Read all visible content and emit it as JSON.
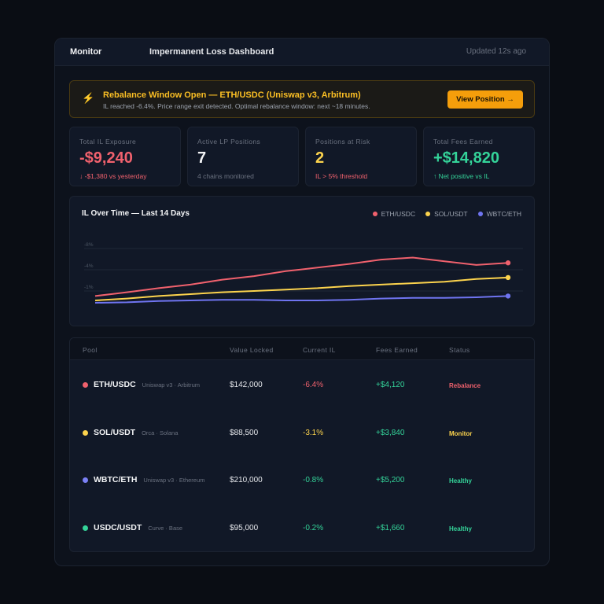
{
  "header": {
    "brand": "Monitor",
    "title": "Impermanent Loss Dashboard",
    "updated": "Updated 12s ago"
  },
  "alert": {
    "icon": "lightning-icon",
    "title": "Rebalance Window Open — ETH/USDC (Uniswap v3, Arbitrum)",
    "subtitle": "IL reached -6.4%. Price range exit detected. Optimal rebalance window: next ~18 minutes.",
    "button": "View Position →"
  },
  "kpis": [
    {
      "label": "Total IL Exposure",
      "value": "-$9,240",
      "note": "↓ -$1,380 vs yesterday",
      "color": "#f0616d",
      "note_color": "#f0616d"
    },
    {
      "label": "Active LP Positions",
      "value": "7",
      "note": "4 chains monitored",
      "color": "#f3f4f6",
      "note_color": "#6b7280"
    },
    {
      "label": "Positions at Risk",
      "value": "2",
      "note": "IL > 5% threshold",
      "color": "#fcd34d",
      "note_color": "#f0616d"
    },
    {
      "label": "Total Fees Earned",
      "value": "+$14,820",
      "note": "↑ Net positive vs IL",
      "color": "#34d399",
      "note_color": "#34d399"
    }
  ],
  "chart_data": {
    "type": "line",
    "title": "IL Over Time — Last 14 Days",
    "yticks": [
      "-8%",
      "-4%",
      "-1%"
    ],
    "ytick_values": [
      -8,
      -4,
      -1
    ],
    "grid": true,
    "legend_position": "top-right",
    "x": [
      1,
      2,
      3,
      4,
      5,
      6,
      7,
      8,
      9,
      10,
      11,
      12,
      13,
      14
    ],
    "series": [
      {
        "name": "ETH/USDC",
        "color": "#f0616d",
        "values": [
          -0.6,
          -0.9,
          -1.4,
          -1.9,
          -2.6,
          -3.1,
          -3.8,
          -4.4,
          -5.1,
          -5.9,
          -6.3,
          -5.6,
          -4.9,
          -5.3
        ]
      },
      {
        "name": "SOL/USDT",
        "color": "#fcd34d",
        "values": [
          -0.25,
          -0.4,
          -0.6,
          -0.75,
          -0.9,
          -1.0,
          -1.2,
          -1.4,
          -1.7,
          -1.9,
          -2.1,
          -2.3,
          -2.7,
          -2.9
        ]
      },
      {
        "name": "WBTC/ETH",
        "color": "#6f74f0",
        "values": [
          -0.06,
          -0.1,
          -0.2,
          -0.25,
          -0.3,
          -0.3,
          -0.25,
          -0.25,
          -0.3,
          -0.4,
          -0.45,
          -0.45,
          -0.5,
          -0.6
        ]
      }
    ]
  },
  "table": {
    "headers": [
      "Pool",
      "Value Locked",
      "Current IL",
      "Fees Earned",
      "Status"
    ],
    "rows": [
      {
        "pool": "ETH/USDC",
        "platform": "Uniswap v3 · Arbitrum",
        "value": "$142,000",
        "il": "-6.4%",
        "fees": "+$4,120",
        "status": "Rebalance",
        "dot": "#f0616d",
        "il_color": "#f0616d",
        "status_color": "#f0616d"
      },
      {
        "pool": "SOL/USDT",
        "platform": "Orca · Solana",
        "value": "$88,500",
        "il": "-3.1%",
        "fees": "+$3,840",
        "status": "Monitor",
        "dot": "#fcd34d",
        "il_color": "#fcd34d",
        "status_color": "#fcd34d"
      },
      {
        "pool": "WBTC/ETH",
        "platform": "Uniswap v3 · Ethereum",
        "value": "$210,000",
        "il": "-0.8%",
        "fees": "+$5,200",
        "status": "Healthy",
        "dot": "#7b80f5",
        "il_color": "#34d399",
        "status_color": "#34d399"
      },
      {
        "pool": "USDC/USDT",
        "platform": "Curve · Base",
        "value": "$95,000",
        "il": "-0.2%",
        "fees": "+$1,660",
        "status": "Healthy",
        "dot": "#34d399",
        "il_color": "#34d399",
        "status_color": "#34d399"
      }
    ]
  }
}
